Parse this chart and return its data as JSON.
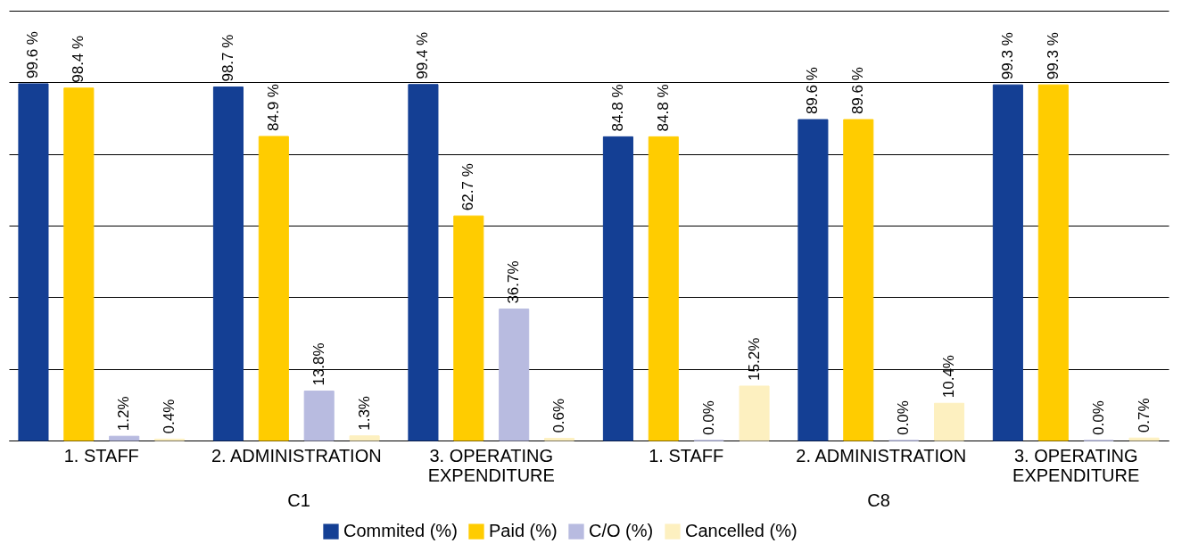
{
  "chart_data": {
    "type": "bar",
    "categories": [
      "1. STAFF",
      "2. ADMINISTRATION",
      "3. OPERATING EXPENDITURE",
      "1. STAFF",
      "2. ADMINISTRATION",
      "3. OPERATING EXPENDITURE"
    ],
    "series": [
      {
        "name": "Commited (%)",
        "color": "#143f94",
        "values": [
          99.6,
          98.7,
          99.4,
          84.8,
          89.6,
          99.3
        ],
        "value_labels": [
          "99.6 %",
          "98.7 %",
          "99.4 %",
          "84.8 %",
          "89.6 %",
          "99.3 %"
        ]
      },
      {
        "name": "Paid (%)",
        "color": "#ffcc00",
        "values": [
          98.4,
          84.9,
          62.7,
          84.8,
          89.6,
          99.3
        ],
        "value_labels": [
          "98.4 %",
          "84.9 %",
          "62.7 %",
          "84.8 %",
          "89.6 %",
          "99.3 %"
        ]
      },
      {
        "name": "C/O (%)",
        "color": "#b8bbe0",
        "values": [
          1.2,
          13.8,
          36.7,
          0.0,
          0.0,
          0.0
        ],
        "value_labels": [
          "1.2%",
          "13.8%",
          "36.7%",
          "0.0%",
          "0.0%",
          "0.0%"
        ]
      },
      {
        "name": "Cancelled (%)",
        "color": "#fdf0c0",
        "values": [
          0.4,
          1.3,
          0.6,
          15.2,
          10.4,
          0.7
        ],
        "value_labels": [
          "0.4%",
          "1.3%",
          "0.6%",
          "15.2%",
          "10.4%",
          "0.7%"
        ]
      }
    ],
    "ylim": [
      0,
      120
    ],
    "yticks": [
      {
        "value": 0,
        "label": null
      },
      {
        "value": 20,
        "label": null
      },
      {
        "value": 40,
        "label": null
      },
      {
        "value": 60,
        "label": null
      },
      {
        "value": 80,
        "label": null
      },
      {
        "value": 100,
        "label": null
      },
      {
        "value": 120,
        "label": null
      }
    ],
    "grid": "y",
    "legend": "bottom",
    "tick_labels": false,
    "annotations": [
      "C1",
      "C8"
    ]
  }
}
